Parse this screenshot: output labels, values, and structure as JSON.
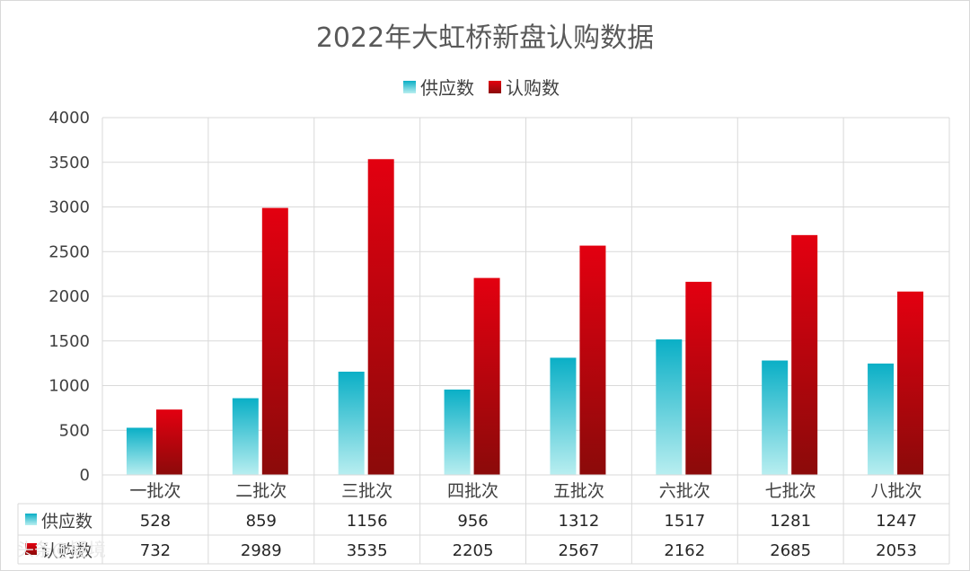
{
  "chart_data": {
    "type": "bar",
    "title": "2022年大虹桥新盘认购数据",
    "categories": [
      "一批次",
      "二批次",
      "三批次",
      "四批次",
      "五批次",
      "六批次",
      "七批次",
      "八批次"
    ],
    "series": [
      {
        "name": "供应数",
        "values": [
          528,
          859,
          1156,
          956,
          1312,
          1517,
          1281,
          1247
        ]
      },
      {
        "name": "认购数",
        "values": [
          732,
          2989,
          3535,
          2205,
          2567,
          2162,
          2685,
          2053
        ]
      }
    ],
    "ylim": [
      0,
      4000
    ],
    "yticks": [
      0,
      500,
      1000,
      1500,
      2000,
      2500,
      3000,
      3500,
      4000
    ],
    "grid": true,
    "legend_position": "top",
    "data_table": true,
    "colors": {
      "supply_top": "#0aafc6",
      "supply_bottom": "#b8eef0",
      "subscribe_top": "#e30010",
      "subscribe_bottom": "#8b0a0a",
      "grid": "#d9d9d9",
      "text": "#404040"
    }
  },
  "watermark": "头条@疑境"
}
